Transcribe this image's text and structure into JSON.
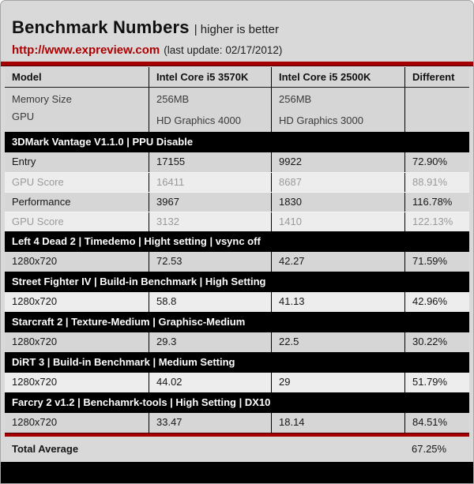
{
  "page": {
    "title": "Benchmark Numbers",
    "subtitle": "| higher is better",
    "site_url": "http://www.expreview.com",
    "last_update": "(last update: 02/17/2012)"
  },
  "colors": {
    "accent_red": "#A40000",
    "section_bar_bg": "#000000",
    "row_dark": "#D6D6D6",
    "row_light": "#EDEDED",
    "muted_text": "#9A9A9A",
    "link_red": "#AD0000"
  },
  "chart_data": {
    "type": "table",
    "title": "Benchmark Numbers | higher is better",
    "columns": [
      "Model",
      "Intel Core i5 3570K",
      "Intel Core i5 2500K",
      "Different"
    ],
    "spec_rows": [
      {
        "label": "Memory Size",
        "cpu1": "256MB",
        "cpu2": "256MB",
        "diff": ""
      },
      {
        "label": "GPU",
        "cpu1": "HD Graphics 4000",
        "cpu2": "HD Graphics 3000",
        "diff": ""
      }
    ],
    "sections": [
      {
        "title": "3DMark Vantage V1.1.0 | PPU Disable",
        "rows": [
          {
            "label": "Entry",
            "cpu1": "17155",
            "cpu2": "9922",
            "diff": "72.90%",
            "variant": "dark"
          },
          {
            "label": "GPU Score",
            "cpu1": "16411",
            "cpu2": "8687",
            "diff": "88.91%",
            "variant": "muted"
          },
          {
            "label": "Performance",
            "cpu1": "3967",
            "cpu2": "1830",
            "diff": "116.78%",
            "variant": "dark"
          },
          {
            "label": "GPU Score",
            "cpu1": "3132",
            "cpu2": "1410",
            "diff": "122.13%",
            "variant": "muted"
          }
        ]
      },
      {
        "title": "Left 4 Dead 2 | Timedemo | Hight setting | vsync off",
        "rows": [
          {
            "label": "1280x720",
            "cpu1": "72.53",
            "cpu2": "42.27",
            "diff": "71.59%",
            "variant": "dark"
          }
        ]
      },
      {
        "title": "Street Fighter IV | Build-in Benchmark | High Setting",
        "rows": [
          {
            "label": "1280x720",
            "cpu1": "58.8",
            "cpu2": "41.13",
            "diff": "42.96%",
            "variant": "light"
          }
        ]
      },
      {
        "title": "Starcraft 2 | Texture-Medium | Graphisc-Medium",
        "rows": [
          {
            "label": "1280x720",
            "cpu1": "29.3",
            "cpu2": "22.5",
            "diff": "30.22%",
            "variant": "dark"
          }
        ]
      },
      {
        "title": "DiRT 3 | Build-in Benchmark | Medium Setting",
        "rows": [
          {
            "label": "1280x720",
            "cpu1": "44.02",
            "cpu2": "29",
            "diff": "51.79%",
            "variant": "light"
          }
        ]
      },
      {
        "title": "Farcry 2 v1.2 | Benchamrk-tools | High Setting | DX10",
        "rows": [
          {
            "label": "1280x720",
            "cpu1": "33.47",
            "cpu2": "18.14",
            "diff": "84.51%",
            "variant": "dark"
          }
        ]
      }
    ],
    "total": {
      "label": "Total Average",
      "value": "67.25%"
    }
  }
}
